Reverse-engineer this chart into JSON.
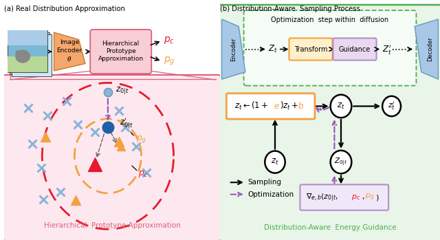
{
  "title_left": "(a) Real Distribution Approximation",
  "title_right": "(b) Distribution-Aware  Sampling Process",
  "fig_bg": "#ffffff",
  "left": {
    "bottom_bg": "#fde8ef",
    "bottom_border": "#d9607a",
    "bottom_label": "Hierarchical  Prototype Approximation",
    "bottom_label_color": "#d9607a",
    "encoder_fill": "#f5a66d",
    "encoder_border": "#cc7722",
    "hpa_fill": "#f9cdd6",
    "hpa_border": "#d9607a",
    "pc_color": "#e8192c",
    "pg_color": "#f5a040",
    "outer_circle_color": "#e8192c",
    "inner_circle_color": "#f5a040",
    "cross_color": "#8ab4d8",
    "tri_color": "#f5a040",
    "red_tri_color": "#e8192c",
    "light_dot_color": "#8ab4d8",
    "dark_dot_color": "#2060a8",
    "purple_arrow": "#9b59b6",
    "gray_arrow": "#666666"
  },
  "right": {
    "outer_bg": "#e8f5e8",
    "outer_border": "#4caf50",
    "inner_bg": "#f5fbf5",
    "inner_border": "#4caf50",
    "bottom_label": "Distribution-Aware  Energy Guidance",
    "bottom_label_color": "#4caf50",
    "enc_fill": "#a8c8e8",
    "enc_border": "#6699bb",
    "transform_fill": "#fff0cc",
    "transform_border": "#f5a040",
    "guidance_fill": "#e8d8f0",
    "guidance_border": "#b090c8",
    "formula_fill": "#ffffff",
    "formula_border": "#f5a040",
    "grad_fill": "#f0e8f8",
    "grad_border": "#b090c8",
    "node_fill": "#ffffff",
    "node_border": "#000000",
    "solid_arrow": "#000000",
    "dashed_arrow": "#9b59b6",
    "pc_color": "#e8192c",
    "pg_color": "#f5a040"
  }
}
